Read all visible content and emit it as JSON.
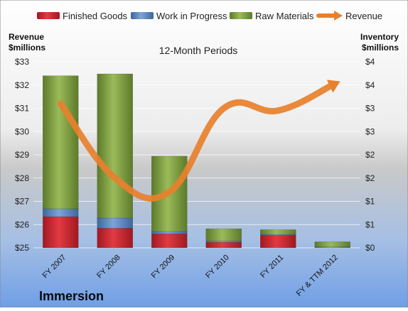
{
  "chart_data": {
    "type": "bar",
    "title": "12-Month Periods",
    "company": "Immersion",
    "categories": [
      "FY 2007",
      "FY 2008",
      "FY 2009",
      "FY 2010",
      "FY 2011",
      "FY & TTM 2012"
    ],
    "left_axis": {
      "label_line1": "Revenue",
      "label_line2": "$millions",
      "ylim": [
        25,
        33
      ],
      "ticks": [
        "$25",
        "$26",
        "$27",
        "$28",
        "$29",
        "$30",
        "$31",
        "$32",
        "$33"
      ]
    },
    "right_axis": {
      "label_line1": "Inventory",
      "label_line2": "$millions",
      "ylim": [
        0,
        4
      ],
      "ticks": [
        "$0",
        "$1",
        "$1",
        "$2",
        "$2",
        "$3",
        "$3",
        "$4",
        "$4"
      ]
    },
    "series": [
      {
        "name": "Finished Goods",
        "axis": "right",
        "stack": true,
        "color": "#c8222c",
        "values": [
          0.67,
          0.42,
          0.3,
          0.12,
          0.27,
          0.0
        ]
      },
      {
        "name": "Work in Progress",
        "axis": "right",
        "stack": true,
        "color": "#4f81bd",
        "values": [
          0.17,
          0.22,
          0.05,
          0.03,
          0.02,
          0.02
        ]
      },
      {
        "name": "Raw Materials",
        "axis": "right",
        "stack": true,
        "color": "#77933c",
        "values": [
          2.86,
          3.1,
          1.62,
          0.26,
          0.1,
          0.11
        ]
      },
      {
        "name": "Revenue",
        "axis": "left",
        "type": "line",
        "color": "#e8802c",
        "values": [
          31.2,
          28.0,
          27.4,
          31.0,
          30.9,
          32.0
        ]
      }
    ],
    "legend": [
      "Finished Goods",
      "Work in Progress",
      "Raw Materials",
      "Revenue"
    ],
    "legend_position": "top",
    "grid": true,
    "colors": {
      "finished_goods": "#c8222c",
      "work_in_progress": "#4f81bd",
      "raw_materials": "#77933c",
      "revenue": "#e8802c"
    }
  }
}
